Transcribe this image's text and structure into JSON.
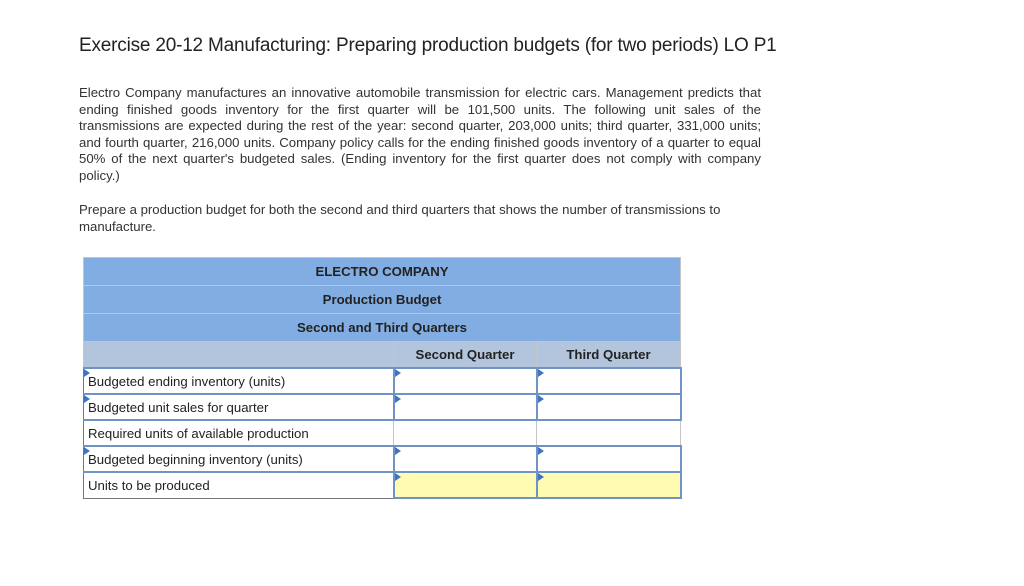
{
  "title": "Exercise 20-12 Manufacturing: Preparing production budgets (for two periods) LO P1",
  "paragraphs": {
    "intro": "Electro Company manufactures an innovative automobile transmission for electric cars. Management predicts that ending finished goods inventory for the first quarter will be 101,500 units. The following unit sales of the transmissions are expected during the rest of the year: second quarter, 203,000 units; third quarter, 331,000 units; and fourth quarter, 216,000 units. Company policy calls for the ending finished goods inventory of a quarter to equal 50% of the next quarter's budgeted sales. (Ending inventory for the first quarter does not comply with company policy.)",
    "instruction": "Prepare a production budget for both the second and third quarters that shows the number of transmissions to manufacture."
  },
  "budget_table": {
    "company": "ELECTRO COMPANY",
    "name": "Production Budget",
    "period": "Second and Third Quarters",
    "columns": [
      "Second Quarter",
      "Third Quarter"
    ],
    "rows": [
      {
        "label": "Budgeted ending inventory (units)",
        "second": "",
        "third": ""
      },
      {
        "label": "Budgeted unit sales for quarter",
        "second": "",
        "third": ""
      },
      {
        "label": "Required units of available production",
        "second": "",
        "third": ""
      },
      {
        "label": "Budgeted beginning inventory (units)",
        "second": "",
        "third": ""
      },
      {
        "label": "Units to be produced",
        "second": "",
        "third": ""
      }
    ]
  },
  "colors": {
    "header_blue": "#82ade2",
    "column_header_blue": "#b3c4dd",
    "input_border_blue": "#6f93c4",
    "result_cell_yellow": "#fffbb0"
  }
}
